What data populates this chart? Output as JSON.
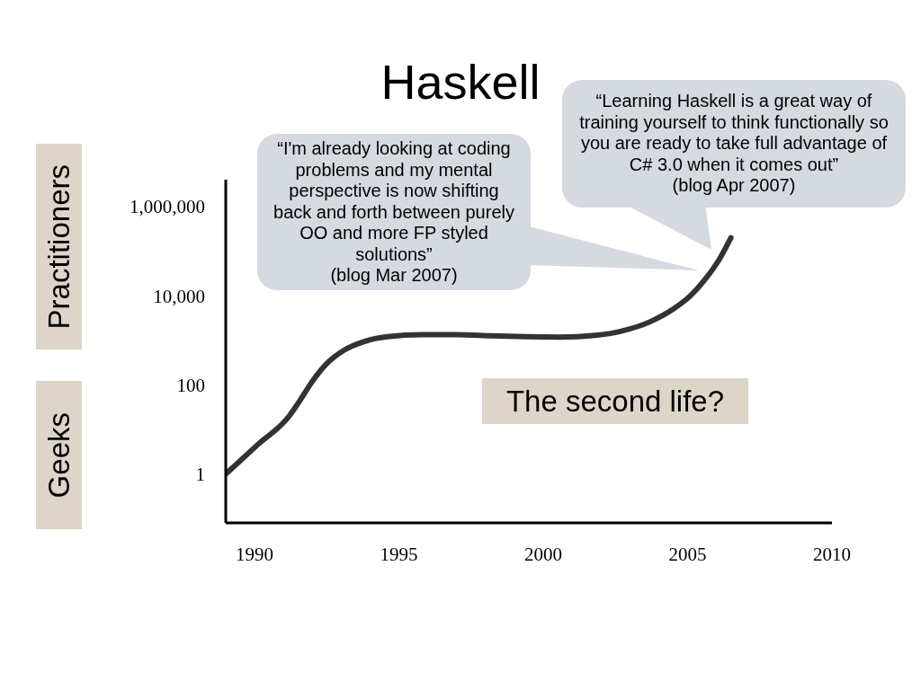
{
  "chart_data": {
    "type": "line",
    "title": "Haskell",
    "x": [
      1989,
      1990.1,
      1991.2,
      1991.5,
      1992,
      1992.5,
      1993.1,
      1993.8,
      1994.6,
      1995.8,
      1997,
      1998.2,
      1999.4,
      2000.6,
      2001.8,
      2002.7,
      2003.7,
      2004.5,
      2005.1,
      2005.6,
      2006.1,
      2006.5
    ],
    "series": [
      {
        "color": "#333333",
        "values": [
          1,
          4.5,
          20,
          38,
          120,
          300,
          600,
          940,
          1200,
          1330,
          1330,
          1260,
          1200,
          1180,
          1290,
          1600,
          2600,
          5000,
          10000,
          23000,
          66000,
          200000
        ]
      }
    ],
    "xlim": [
      1989,
      2010
    ],
    "xticks": [
      1990,
      1995,
      2000,
      2005,
      2010
    ],
    "ylim": [
      0.08,
      4000000
    ],
    "yticks": [
      1,
      100,
      {
        "value": 10000,
        "label": "10,000"
      },
      {
        "value": 1000000,
        "label": "1,000,000"
      }
    ],
    "log": "y",
    "line_style": "solid",
    "annotations": [
      "“I'm already looking at coding problems and my mental perspective is now shifting back and forth between purely OO and more FP styled solutions”\n(blog Mar 2007)",
      "“Learning Haskell is a great way of training yourself to think functionally so you are ready to take full advantage of C# 3.0 when it comes out”\n(blog Apr 2007)",
      "The second life?",
      "Practitioners",
      "Geeks"
    ]
  }
}
